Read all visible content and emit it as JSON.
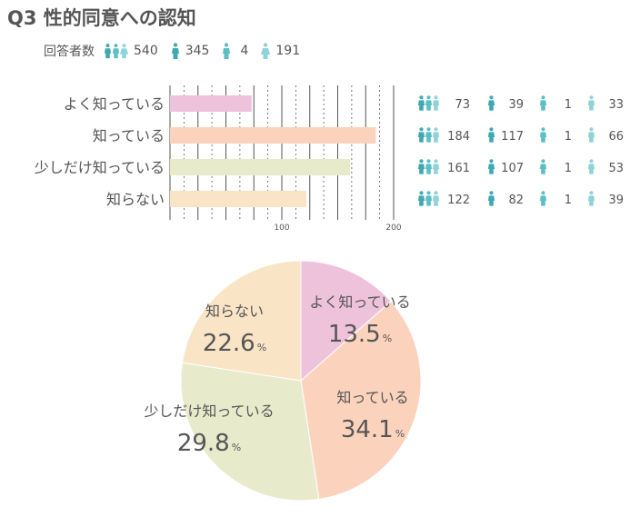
{
  "title": "Q3 性的同意への認知",
  "respondents": {
    "label": "回答者数",
    "counts": [
      {
        "icon": "group-icon",
        "value": "540"
      },
      {
        "icon": "male-icon",
        "value": "345"
      },
      {
        "icon": "other-icon",
        "value": "4"
      },
      {
        "icon": "female-icon",
        "value": "191"
      }
    ]
  },
  "colors": {
    "male": "#3fa8b0",
    "other": "#5bbfc3",
    "female": "#8fd3d8",
    "grid": "#555555",
    "text": "#555555"
  },
  "chart_data": [
    {
      "type": "bar",
      "orientation": "horizontal",
      "categories": [
        "よく知っている",
        "知っている",
        "少しだけ知っている",
        "知らない"
      ],
      "values": [
        73,
        184,
        161,
        122
      ],
      "xlim": [
        0,
        200
      ],
      "ticks": [
        "100",
        "200"
      ],
      "colors": [
        "#efc2dc",
        "#fbd3bd",
        "#e8ebcb",
        "#f9e4c6"
      ],
      "breakdown": [
        {
          "total": "73",
          "male": "39",
          "other": "1",
          "female": "33"
        },
        {
          "total": "184",
          "male": "117",
          "other": "1",
          "female": "66"
        },
        {
          "total": "161",
          "male": "107",
          "other": "1",
          "female": "53"
        },
        {
          "total": "122",
          "male": "82",
          "other": "1",
          "female": "39"
        }
      ],
      "grid": true
    },
    {
      "type": "pie",
      "categories": [
        "よく知っている",
        "知っている",
        "少しだけ知っている",
        "知らない"
      ],
      "values": [
        13.5,
        34.1,
        29.8,
        22.6
      ],
      "labels": [
        "13.5",
        "34.1",
        "29.8",
        "22.6"
      ],
      "unit": "%",
      "colors": [
        "#efc2dc",
        "#fbd3bd",
        "#e8ebcb",
        "#f9e4c6"
      ]
    }
  ]
}
